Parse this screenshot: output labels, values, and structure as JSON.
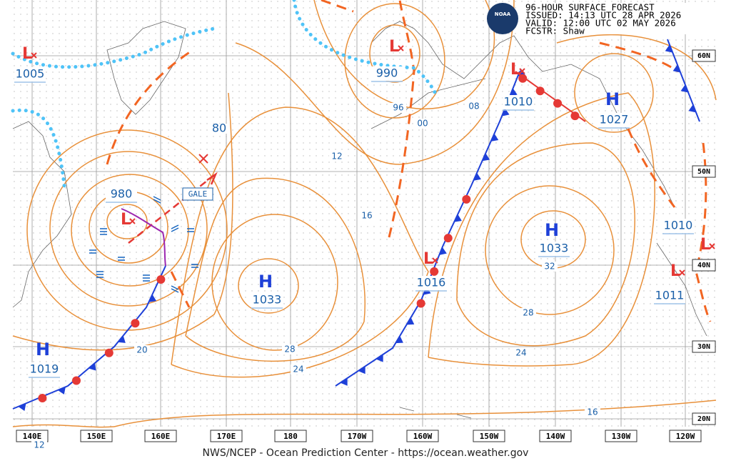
{
  "header": {
    "lines": [
      "96-HOUR SURFACE FORECAST",
      "ISSUED: 14:13 UTC 28 APR 2026",
      "VALID:  12:00 UTC 02 MAY 2026",
      "FCSTR:  Shaw"
    ]
  },
  "logo": "NOAA",
  "footer": "NWS/NCEP - Ocean Prediction Center - https://ocean.weather.gov",
  "longitude_labels": [
    "140E",
    "150E",
    "160E",
    "170E",
    "180",
    "170W",
    "160W",
    "150W",
    "140W",
    "130W",
    "120W"
  ],
  "latitude_labels": [
    "60N",
    "50N",
    "40N",
    "30N",
    "20N"
  ],
  "centers": [
    {
      "symbol": "L",
      "pressure": "1005"
    },
    {
      "symbol": "L",
      "pressure": "990"
    },
    {
      "symbol": "L",
      "pressure": "980"
    },
    {
      "symbol": "L",
      "pressure": "1010"
    },
    {
      "symbol": "H",
      "pressure": "1027"
    },
    {
      "symbol": "H",
      "pressure": "1033"
    },
    {
      "symbol": "H",
      "pressure": "1033"
    },
    {
      "symbol": "L",
      "pressure": "1016"
    },
    {
      "symbol": "H",
      "pressure": "1019"
    },
    {
      "symbol": "L",
      "pressure": "1010"
    },
    {
      "symbol": "L",
      "pressure": "1011"
    }
  ],
  "isobar_labels": [
    "96",
    "00",
    "08",
    "12",
    "16",
    "20",
    "24",
    "28",
    "32",
    "28",
    "24",
    "16",
    "12",
    "80"
  ],
  "gale_label": "GALE"
}
